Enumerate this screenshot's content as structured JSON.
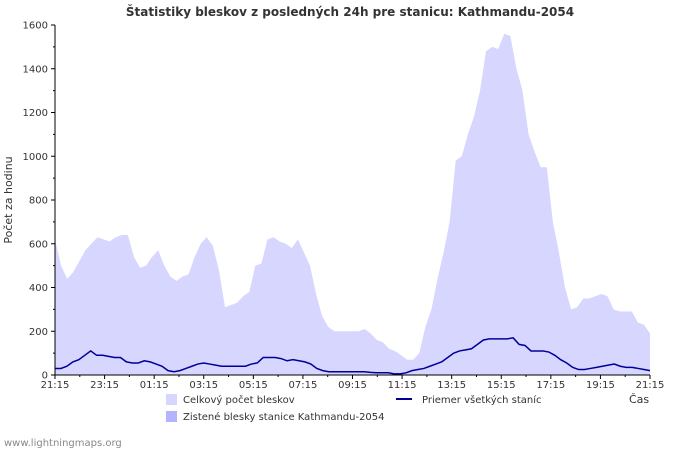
{
  "chart_data": {
    "type": "area",
    "title": "Štatistiky bleskov z posledných 24h pre stanicu: Kathmandu-2054",
    "ylabel": "Počet za hodinu",
    "xlabel": "Čas",
    "ylim": [
      0,
      1600
    ],
    "yticks": [
      0,
      200,
      400,
      600,
      800,
      1000,
      1200,
      1400,
      1600
    ],
    "xtick_labels": [
      "21:15",
      "23:15",
      "01:15",
      "03:15",
      "05:15",
      "07:15",
      "09:15",
      "11:15",
      "13:15",
      "15:15",
      "17:15",
      "19:15",
      "21:15"
    ],
    "grid": false,
    "legend_position": "bottom",
    "series": [
      {
        "name": "Celkový počet bleskov",
        "kind": "area",
        "color": "#d6d6ff",
        "values": [
          620,
          500,
          440,
          470,
          520,
          570,
          600,
          630,
          620,
          610,
          630,
          640,
          640,
          540,
          490,
          500,
          540,
          570,
          500,
          450,
          430,
          450,
          460,
          540,
          600,
          630,
          590,
          480,
          310,
          320,
          330,
          360,
          380,
          500,
          510,
          620,
          630,
          610,
          600,
          580,
          620,
          560,
          500,
          370,
          270,
          220,
          200,
          200,
          200,
          200,
          200,
          210,
          190,
          160,
          150,
          120,
          110,
          90,
          70,
          70,
          100,
          220,
          300,
          440,
          560,
          700,
          980,
          1000,
          1100,
          1180,
          1300,
          1480,
          1500,
          1490,
          1560,
          1550,
          1400,
          1300,
          1100,
          1020,
          950,
          950,
          700,
          560,
          400,
          300,
          310,
          350,
          350,
          360,
          370,
          360,
          300,
          290,
          290,
          290,
          240,
          230,
          190
        ]
      },
      {
        "name": "Zistené blesky stanice Kathmandu-2054",
        "kind": "area",
        "color": "#b3b3ff",
        "values": []
      },
      {
        "name": "Priemer všetkých staníc",
        "kind": "line",
        "color": "#000099",
        "values": [
          30,
          30,
          40,
          60,
          70,
          90,
          110,
          90,
          90,
          85,
          80,
          80,
          60,
          55,
          55,
          65,
          60,
          50,
          40,
          20,
          15,
          20,
          30,
          40,
          50,
          55,
          50,
          45,
          40,
          40,
          40,
          40,
          40,
          50,
          55,
          80,
          80,
          80,
          75,
          65,
          70,
          65,
          60,
          50,
          30,
          20,
          15,
          15,
          15,
          15,
          15,
          15,
          15,
          12,
          10,
          10,
          10,
          5,
          5,
          10,
          20,
          25,
          30,
          40,
          50,
          60,
          80,
          100,
          110,
          115,
          120,
          140,
          160,
          165,
          165,
          165,
          165,
          170,
          140,
          135,
          110,
          110,
          110,
          105,
          90,
          70,
          55,
          35,
          25,
          25,
          30,
          35,
          40,
          45,
          50,
          40,
          35,
          35,
          30,
          25,
          20
        ]
      }
    ]
  },
  "footer": "www.lightningmaps.org"
}
